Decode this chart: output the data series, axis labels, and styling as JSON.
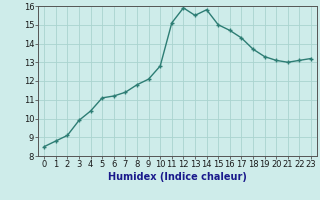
{
  "x": [
    0,
    1,
    2,
    3,
    4,
    5,
    6,
    7,
    8,
    9,
    10,
    11,
    12,
    13,
    14,
    15,
    16,
    17,
    18,
    19,
    20,
    21,
    22,
    23
  ],
  "y": [
    8.5,
    8.8,
    9.1,
    9.9,
    10.4,
    11.1,
    11.2,
    11.4,
    11.8,
    12.1,
    12.8,
    15.1,
    15.9,
    15.5,
    15.8,
    15.0,
    14.7,
    14.3,
    13.7,
    13.3,
    13.1,
    13.0,
    13.1,
    13.2
  ],
  "line_color": "#2d7d74",
  "marker_color": "#2d7d74",
  "bg_color": "#ceecea",
  "grid_color": "#aad4cf",
  "xlabel": "Humidex (Indice chaleur)",
  "ylim": [
    8,
    16
  ],
  "xlim_min": -0.5,
  "xlim_max": 23.5,
  "yticks": [
    8,
    9,
    10,
    11,
    12,
    13,
    14,
    15,
    16
  ],
  "xticks": [
    0,
    1,
    2,
    3,
    4,
    5,
    6,
    7,
    8,
    9,
    10,
    11,
    12,
    13,
    14,
    15,
    16,
    17,
    18,
    19,
    20,
    21,
    22,
    23
  ],
  "xtick_labels": [
    "0",
    "1",
    "2",
    "3",
    "4",
    "5",
    "6",
    "7",
    "8",
    "9",
    "10",
    "11",
    "12",
    "13",
    "14",
    "15",
    "16",
    "17",
    "18",
    "19",
    "20",
    "21",
    "22",
    "23"
  ],
  "tick_fontsize": 6,
  "xlabel_fontsize": 7,
  "marker_size": 3,
  "line_width": 1.0
}
